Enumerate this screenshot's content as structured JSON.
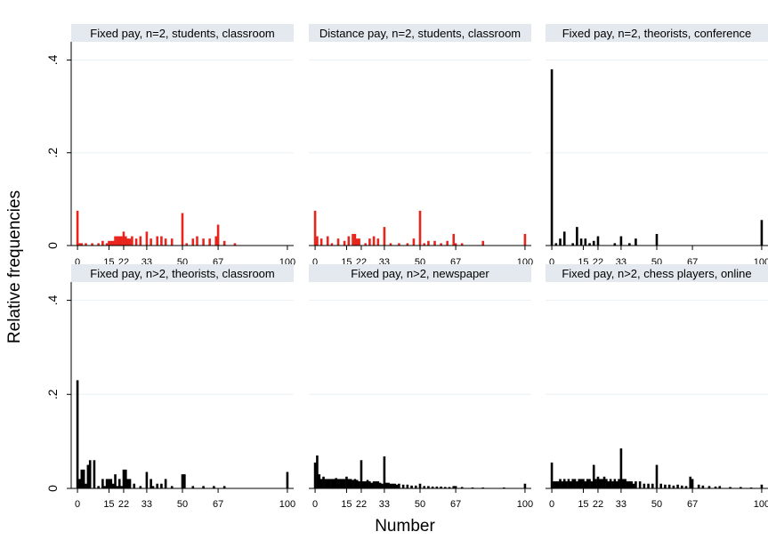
{
  "figure": {
    "ylabel": "Relative frequencies",
    "xlabel": "Number"
  },
  "chart_data": [
    {
      "type": "bar",
      "title": "Fixed pay, n=2, students, classroom",
      "color": "#e8251d",
      "xticks": [
        0,
        15,
        22,
        33,
        50,
        67,
        100
      ],
      "yticks": [
        "0",
        ".2",
        ".4"
      ],
      "xlim": [
        -3,
        103
      ],
      "ylim": [
        0,
        0.42
      ],
      "x": [
        0,
        1,
        2,
        4,
        7,
        10,
        12,
        14,
        15,
        16,
        17,
        18,
        19,
        20,
        21,
        22,
        23,
        24,
        25,
        26,
        28,
        30,
        33,
        35,
        38,
        40,
        42,
        45,
        50,
        52,
        55,
        57,
        60,
        63,
        66,
        67,
        70,
        75
      ],
      "values": [
        0.075,
        0.005,
        0.005,
        0.005,
        0.005,
        0.005,
        0.01,
        0.005,
        0.01,
        0.01,
        0.01,
        0.02,
        0.02,
        0.02,
        0.02,
        0.03,
        0.02,
        0.015,
        0.015,
        0.02,
        0.015,
        0.02,
        0.03,
        0.015,
        0.02,
        0.02,
        0.015,
        0.015,
        0.07,
        0.005,
        0.015,
        0.02,
        0.015,
        0.015,
        0.02,
        0.045,
        0.01,
        0.005
      ]
    },
    {
      "type": "bar",
      "title": "Distance pay, n=2, students, classroom",
      "color": "#e8251d",
      "xticks": [
        0,
        15,
        22,
        33,
        50,
        67,
        100
      ],
      "yticks": [
        "0",
        ".2",
        ".4"
      ],
      "xlim": [
        -3,
        103
      ],
      "ylim": [
        0,
        0.42
      ],
      "x": [
        0,
        1,
        3,
        6,
        8,
        11,
        14,
        16,
        18,
        19,
        20,
        21,
        24,
        26,
        28,
        30,
        33,
        36,
        40,
        44,
        47,
        50,
        52,
        54,
        57,
        60,
        63,
        66,
        67,
        70,
        80,
        100
      ],
      "values": [
        0.075,
        0.02,
        0.015,
        0.02,
        0.005,
        0.015,
        0.01,
        0.02,
        0.025,
        0.025,
        0.015,
        0.015,
        0.005,
        0.015,
        0.02,
        0.015,
        0.04,
        0.005,
        0.005,
        0.005,
        0.015,
        0.075,
        0.005,
        0.01,
        0.01,
        0.005,
        0.01,
        0.025,
        0.005,
        0.005,
        0.01,
        0.025
      ]
    },
    {
      "type": "bar",
      "title": "Fixed pay, n=2, theorists, conference",
      "color": "#000000",
      "xticks": [
        0,
        15,
        22,
        33,
        50,
        67,
        100
      ],
      "yticks": [
        "0",
        ".2",
        ".4"
      ],
      "xlim": [
        -3,
        103
      ],
      "ylim": [
        0,
        0.42
      ],
      "x": [
        0,
        2,
        4,
        6,
        10,
        12,
        14,
        16,
        18,
        20,
        22,
        30,
        33,
        37,
        40,
        50,
        100
      ],
      "values": [
        0.38,
        0.005,
        0.015,
        0.03,
        0.005,
        0.04,
        0.015,
        0.015,
        0.005,
        0.01,
        0.02,
        0.005,
        0.02,
        0.005,
        0.015,
        0.025,
        0.055
      ]
    },
    {
      "type": "bar",
      "title": "Fixed pay, n>2, theorists, classroom",
      "color": "#000000",
      "xticks": [
        0,
        15,
        22,
        33,
        50,
        67,
        100
      ],
      "yticks": [
        "0",
        ".2",
        ".4"
      ],
      "xlim": [
        -3,
        103
      ],
      "ylim": [
        0,
        0.42
      ],
      "x": [
        0,
        1,
        2,
        3,
        4,
        5,
        6,
        8,
        10,
        12,
        13,
        14,
        15,
        16,
        17,
        18,
        19,
        20,
        21,
        22,
        23,
        24,
        25,
        27,
        30,
        33,
        35,
        36,
        38,
        40,
        42,
        45,
        50,
        51,
        55,
        60,
        65,
        70,
        100
      ],
      "values": [
        0.23,
        0.02,
        0.04,
        0.04,
        0.01,
        0.05,
        0.06,
        0.06,
        0.005,
        0.02,
        0.005,
        0.02,
        0.02,
        0.02,
        0.01,
        0.03,
        0.005,
        0.02,
        0.005,
        0.04,
        0.04,
        0.02,
        0.02,
        0.01,
        0.005,
        0.035,
        0.02,
        0.005,
        0.01,
        0.01,
        0.02,
        0.005,
        0.03,
        0.03,
        0.005,
        0.005,
        0.005,
        0.005,
        0.035
      ]
    },
    {
      "type": "bar",
      "title": "Fixed pay, n>2, newspaper",
      "color": "#000000",
      "xticks": [
        0,
        15,
        22,
        33,
        50,
        67,
        100
      ],
      "yticks": [
        "0",
        ".2",
        ".4"
      ],
      "xlim": [
        -3,
        103
      ],
      "ylim": [
        0,
        0.42
      ],
      "x": [
        0,
        1,
        2,
        3,
        4,
        5,
        6,
        7,
        8,
        9,
        10,
        11,
        12,
        13,
        14,
        15,
        16,
        17,
        18,
        19,
        20,
        21,
        22,
        23,
        24,
        25,
        26,
        27,
        28,
        29,
        30,
        31,
        32,
        33,
        34,
        35,
        36,
        37,
        38,
        39,
        40,
        42,
        44,
        46,
        48,
        50,
        52,
        54,
        56,
        58,
        60,
        62,
        64,
        66,
        67,
        70,
        75,
        80,
        90,
        100
      ],
      "values": [
        0.055,
        0.07,
        0.03,
        0.02,
        0.025,
        0.02,
        0.02,
        0.02,
        0.02,
        0.02,
        0.022,
        0.02,
        0.02,
        0.02,
        0.02,
        0.025,
        0.02,
        0.02,
        0.018,
        0.02,
        0.018,
        0.015,
        0.06,
        0.015,
        0.015,
        0.018,
        0.015,
        0.012,
        0.015,
        0.015,
        0.015,
        0.012,
        0.01,
        0.068,
        0.012,
        0.012,
        0.01,
        0.01,
        0.01,
        0.008,
        0.01,
        0.008,
        0.008,
        0.006,
        0.006,
        0.01,
        0.005,
        0.005,
        0.004,
        0.004,
        0.004,
        0.003,
        0.003,
        0.005,
        0.005,
        0.003,
        0.002,
        0.002,
        0.002,
        0.01
      ]
    },
    {
      "type": "bar",
      "title": "Fixed pay, n>2, chess players, online",
      "color": "#000000",
      "xticks": [
        0,
        15,
        22,
        33,
        50,
        67,
        100
      ],
      "yticks": [
        "0",
        ".2",
        ".4"
      ],
      "xlim": [
        -3,
        103
      ],
      "ylim": [
        0,
        0.42
      ],
      "x": [
        0,
        1,
        2,
        3,
        4,
        5,
        6,
        7,
        8,
        9,
        10,
        11,
        12,
        13,
        14,
        15,
        16,
        17,
        18,
        19,
        20,
        21,
        22,
        23,
        24,
        25,
        26,
        27,
        28,
        29,
        30,
        31,
        32,
        33,
        34,
        35,
        36,
        37,
        38,
        39,
        40,
        42,
        44,
        46,
        48,
        50,
        52,
        54,
        56,
        58,
        60,
        62,
        64,
        66,
        67,
        70,
        72,
        75,
        78,
        80,
        85,
        90,
        95,
        100
      ],
      "values": [
        0.055,
        0.015,
        0.015,
        0.015,
        0.02,
        0.015,
        0.02,
        0.015,
        0.02,
        0.015,
        0.02,
        0.02,
        0.015,
        0.02,
        0.02,
        0.02,
        0.015,
        0.02,
        0.02,
        0.015,
        0.05,
        0.02,
        0.025,
        0.02,
        0.02,
        0.025,
        0.02,
        0.015,
        0.02,
        0.015,
        0.02,
        0.015,
        0.02,
        0.085,
        0.02,
        0.02,
        0.015,
        0.015,
        0.015,
        0.01,
        0.015,
        0.015,
        0.01,
        0.01,
        0.01,
        0.05,
        0.01,
        0.008,
        0.008,
        0.006,
        0.008,
        0.006,
        0.005,
        0.025,
        0.02,
        0.008,
        0.006,
        0.005,
        0.004,
        0.005,
        0.003,
        0.003,
        0.002,
        0.008
      ]
    }
  ]
}
